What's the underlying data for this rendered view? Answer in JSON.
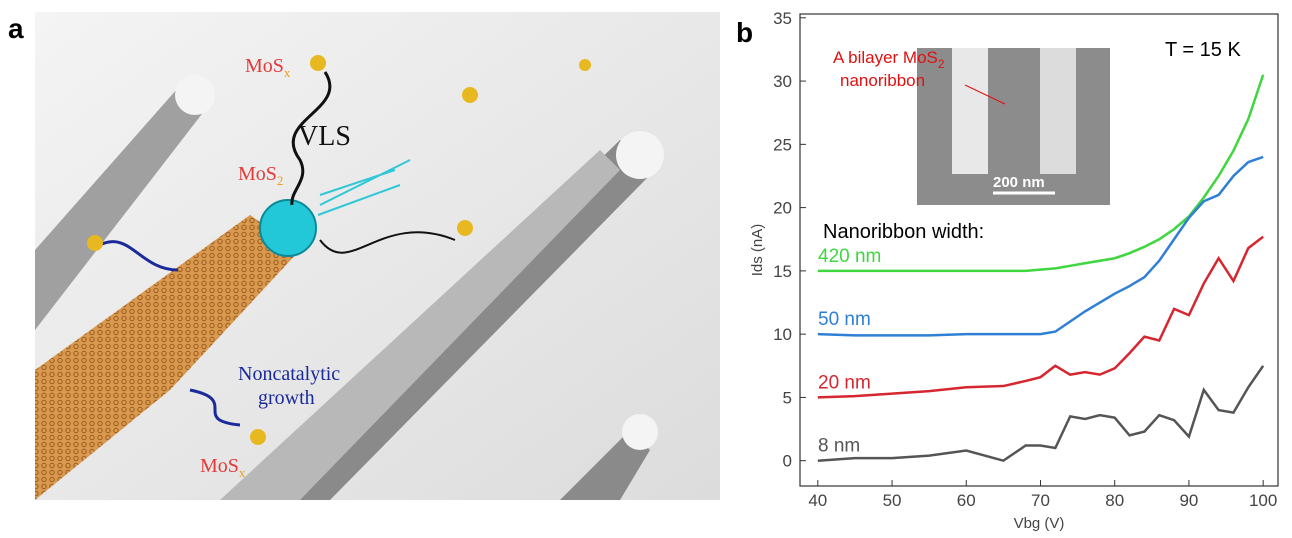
{
  "panel_labels": [
    "a",
    "b"
  ],
  "illustration": {
    "top_precursor": [
      "MoS",
      "x"
    ],
    "vls": "VLS",
    "catalyst_product": [
      "MoS",
      "2"
    ],
    "noncatalytic": [
      "Noncatalytic",
      "growth"
    ],
    "bottom_precursor": [
      "MoS",
      "x"
    ]
  },
  "chart_data": {
    "type": "line",
    "x_label": "Vbg (V)",
    "y_label": "Ids (nA)",
    "annotations": {
      "temperature": "T = 15 K",
      "width_title": "Nanoribbon width:",
      "inset_label": [
        "A bilayer MoS",
        "2",
        "nanoribbon"
      ],
      "scale_bar": "200 nm"
    },
    "x": [
      40,
      45,
      50,
      55,
      60,
      65,
      68,
      70,
      72,
      74,
      76,
      78,
      80,
      82,
      84,
      86,
      88,
      90,
      92,
      94,
      96,
      98,
      100
    ],
    "series": [
      {
        "name": "420 nm",
        "color": "#3fd63f",
        "values": [
          15,
          15,
          15,
          15,
          15,
          15,
          15,
          15.1,
          15.2,
          15.4,
          15.6,
          15.8,
          16,
          16.4,
          16.9,
          17.5,
          18.3,
          19.3,
          20.8,
          22.5,
          24.5,
          27,
          30.5
        ]
      },
      {
        "name": "50 nm",
        "color": "#2f7fd4",
        "values": [
          10,
          9.9,
          9.9,
          9.9,
          10,
          10,
          10,
          10,
          10.2,
          11,
          11.8,
          12.5,
          13.2,
          13.8,
          14.5,
          15.8,
          17.5,
          19.2,
          20.5,
          21,
          22.5,
          23.6,
          24
        ]
      },
      {
        "name": "20 nm",
        "color": "#d6262f",
        "values": [
          5,
          5.1,
          5.3,
          5.5,
          5.8,
          5.9,
          6.3,
          6.6,
          7.5,
          6.8,
          7,
          6.8,
          7.3,
          8.5,
          9.8,
          9.5,
          12,
          11.5,
          14,
          16,
          14.2,
          16.8,
          17.7
        ]
      },
      {
        "name": "8 nm",
        "color": "#555555",
        "values": [
          0,
          0.2,
          0.2,
          0.4,
          0.8,
          0,
          1.2,
          1.2,
          1,
          3.5,
          3.3,
          3.6,
          3.4,
          2,
          2.3,
          3.6,
          3.2,
          1.9,
          5.6,
          4,
          3.8,
          5.8,
          7.5
        ]
      }
    ],
    "xlim": [
      37.6,
      102
    ],
    "ylim": [
      -2,
      35.3
    ],
    "xticks": [
      40,
      50,
      60,
      70,
      80,
      90,
      100
    ],
    "yticks": [
      0,
      5,
      10,
      15,
      20,
      25,
      30,
      35
    ]
  }
}
